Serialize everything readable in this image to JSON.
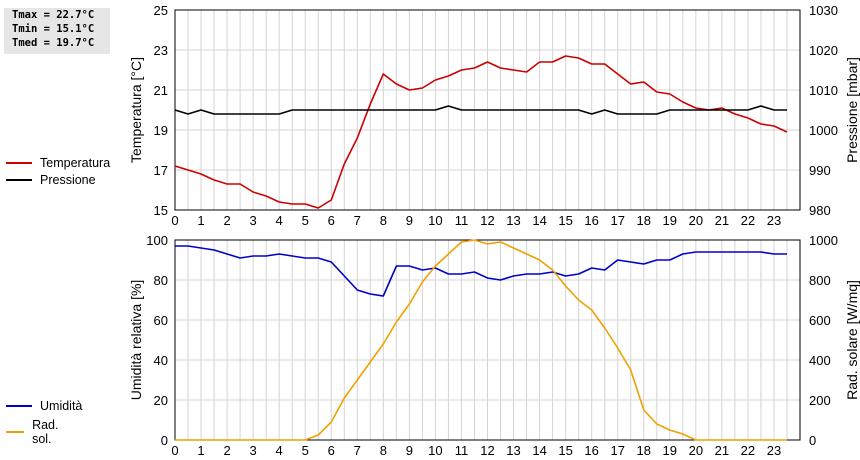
{
  "stats": {
    "tmax": "Tmax = 22.7°C",
    "tmin": "Tmin = 15.1°C",
    "tmed": "Tmed = 19.7°C"
  },
  "legend_top": [
    {
      "label": "Temperatura",
      "color": "#cc0000"
    },
    {
      "label": "Pressione",
      "color": "#000000"
    }
  ],
  "legend_bottom": [
    {
      "label": "Umidità",
      "color": "#0000cc"
    },
    {
      "label": "Rad. sol.",
      "color": "#f0a000"
    }
  ],
  "chart_data": [
    {
      "type": "line",
      "x_ticks": [
        "0",
        "1",
        "2",
        "3",
        "4",
        "5",
        "6",
        "7",
        "8",
        "9",
        "10",
        "11",
        "12",
        "13",
        "14",
        "15",
        "16",
        "17",
        "18",
        "19",
        "20",
        "21",
        "22",
        "23"
      ],
      "xlim": [
        0,
        24
      ],
      "ylabel": "Temperatura [°C]",
      "ylim": [
        15,
        25
      ],
      "y_ticks": [
        "15",
        "17",
        "19",
        "21",
        "23",
        "25"
      ],
      "ylabel_right": "Pressione [mbar]",
      "ylim_right": [
        980,
        1030
      ],
      "y_ticks_right": [
        "980",
        "990",
        "1000",
        "1010",
        "1020",
        "1030"
      ],
      "grid": true,
      "series": [
        {
          "name": "Temperatura",
          "color": "#cc0000",
          "axis": "left",
          "x": [
            0,
            0.5,
            1,
            1.5,
            2,
            2.5,
            3,
            3.5,
            4,
            4.5,
            5,
            5.5,
            6,
            6.5,
            7,
            7.5,
            8,
            8.5,
            9,
            9.5,
            10,
            10.5,
            11,
            11.5,
            12,
            12.5,
            13,
            13.5,
            14,
            14.5,
            15,
            15.5,
            16,
            16.5,
            17,
            17.5,
            18,
            18.5,
            19,
            19.5,
            20,
            20.5,
            21,
            21.5,
            22,
            22.5,
            23,
            23.5
          ],
          "values": [
            17.2,
            17.0,
            16.8,
            16.5,
            16.3,
            16.3,
            15.9,
            15.7,
            15.4,
            15.3,
            15.3,
            15.1,
            15.5,
            17.3,
            18.6,
            20.3,
            21.8,
            21.3,
            21.0,
            21.1,
            21.5,
            21.7,
            22.0,
            22.1,
            22.4,
            22.1,
            22.0,
            21.9,
            22.4,
            22.4,
            22.7,
            22.6,
            22.3,
            22.3,
            21.8,
            21.3,
            21.4,
            20.9,
            20.8,
            20.4,
            20.1,
            20.0,
            20.1,
            19.8,
            19.6,
            19.3,
            19.2,
            18.9
          ]
        },
        {
          "name": "Pressione",
          "color": "#000000",
          "axis": "right",
          "x": [
            0,
            0.5,
            1,
            1.5,
            2,
            2.5,
            3,
            3.5,
            4,
            4.5,
            5,
            5.5,
            6,
            6.5,
            7,
            7.5,
            8,
            8.5,
            9,
            9.5,
            10,
            10.5,
            11,
            11.5,
            12,
            12.5,
            13,
            13.5,
            14,
            14.5,
            15,
            15.5,
            16,
            16.5,
            17,
            17.5,
            18,
            18.5,
            19,
            19.5,
            20,
            20.5,
            21,
            21.5,
            22,
            22.5,
            23,
            23.5
          ],
          "values": [
            1005,
            1004,
            1005,
            1004,
            1004,
            1004,
            1004,
            1004,
            1004,
            1005,
            1005,
            1005,
            1005,
            1005,
            1005,
            1005,
            1005,
            1005,
            1005,
            1005,
            1005,
            1006,
            1005,
            1005,
            1005,
            1005,
            1005,
            1005,
            1005,
            1005,
            1005,
            1005,
            1004,
            1005,
            1004,
            1004,
            1004,
            1004,
            1005,
            1005,
            1005,
            1005,
            1005,
            1005,
            1005,
            1006,
            1005,
            1005
          ]
        }
      ]
    },
    {
      "type": "line",
      "x_ticks": [
        "0",
        "1",
        "2",
        "3",
        "4",
        "5",
        "6",
        "7",
        "8",
        "9",
        "10",
        "11",
        "12",
        "13",
        "14",
        "15",
        "16",
        "17",
        "18",
        "19",
        "20",
        "21",
        "22",
        "23"
      ],
      "xlim": [
        0,
        24
      ],
      "ylabel": "Umidità relativa [%]",
      "ylim": [
        0,
        100
      ],
      "y_ticks": [
        "0",
        "20",
        "40",
        "60",
        "80",
        "100"
      ],
      "ylabel_right": "Rad. solare [W/mq]",
      "ylim_right": [
        0,
        1000
      ],
      "y_ticks_right": [
        "0",
        "200",
        "400",
        "600",
        "800",
        "1000"
      ],
      "grid": true,
      "series": [
        {
          "name": "Umidità",
          "color": "#0000cc",
          "axis": "left",
          "x": [
            0,
            0.5,
            1,
            1.5,
            2,
            2.5,
            3,
            3.5,
            4,
            4.5,
            5,
            5.5,
            6,
            6.5,
            7,
            7.5,
            8,
            8.5,
            9,
            9.5,
            10,
            10.5,
            11,
            11.5,
            12,
            12.5,
            13,
            13.5,
            14,
            14.5,
            15,
            15.5,
            16,
            16.5,
            17,
            17.5,
            18,
            18.5,
            19,
            19.5,
            20,
            20.5,
            21,
            21.5,
            22,
            22.5,
            23,
            23.5
          ],
          "values": [
            97,
            97,
            96,
            95,
            93,
            91,
            92,
            92,
            93,
            92,
            91,
            91,
            89,
            82,
            75,
            73,
            72,
            87,
            87,
            85,
            86,
            83,
            83,
            84,
            81,
            80,
            82,
            83,
            83,
            84,
            82,
            83,
            86,
            85,
            90,
            89,
            88,
            90,
            90,
            93,
            94,
            94,
            94,
            94,
            94,
            94,
            93,
            93
          ]
        },
        {
          "name": "Rad. sol.",
          "color": "#f0a000",
          "axis": "right",
          "x": [
            0,
            0.5,
            1,
            1.5,
            2,
            2.5,
            3,
            3.5,
            4,
            4.5,
            5,
            5.5,
            6,
            6.5,
            7,
            7.5,
            8,
            8.5,
            9,
            9.5,
            10,
            10.5,
            11,
            11.5,
            12,
            12.5,
            13,
            13.5,
            14,
            14.5,
            15,
            15.5,
            16,
            16.5,
            17,
            17.5,
            18,
            18.5,
            19,
            19.5,
            20,
            20.5,
            21,
            21.5,
            22,
            22.5,
            23,
            23.5
          ],
          "values": [
            0,
            0,
            0,
            0,
            0,
            0,
            0,
            0,
            0,
            0,
            0,
            25,
            90,
            210,
            300,
            390,
            480,
            590,
            680,
            790,
            870,
            930,
            990,
            1000,
            980,
            990,
            960,
            930,
            900,
            850,
            770,
            700,
            650,
            560,
            460,
            350,
            150,
            80,
            50,
            30,
            0,
            0,
            0,
            0,
            0,
            0,
            0,
            0
          ]
        }
      ]
    }
  ]
}
